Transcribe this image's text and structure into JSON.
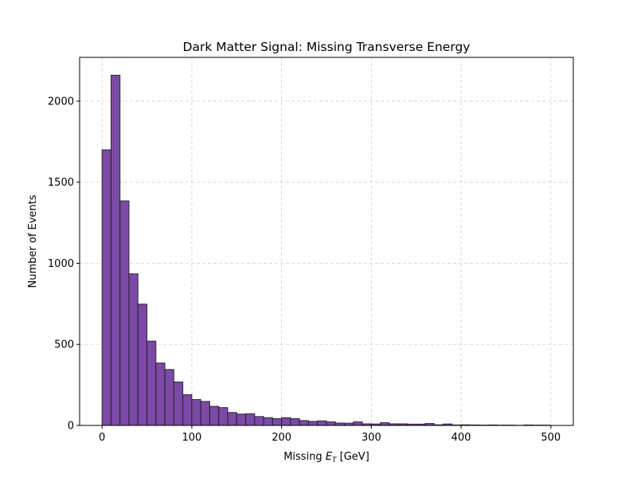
{
  "chart_data": {
    "type": "bar",
    "title": "Dark Matter Signal: Missing Transverse Energy",
    "xlabel_prefix": "Missing ",
    "xlabel_symbol": "E",
    "xlabel_subscript": "T",
    "xlabel_suffix": " [GeV]",
    "ylabel": "Number of Events",
    "xlim": [
      -25,
      525
    ],
    "ylim": [
      0,
      2270
    ],
    "grid": true,
    "bin_edges_start": 0,
    "bin_width": 10,
    "values": [
      1700,
      2160,
      1385,
      935,
      748,
      520,
      385,
      345,
      268,
      190,
      160,
      148,
      118,
      110,
      80,
      70,
      72,
      55,
      48,
      42,
      48,
      42,
      30,
      25,
      28,
      22,
      15,
      14,
      22,
      10,
      9,
      17,
      10,
      10,
      8,
      8,
      12,
      4,
      9,
      3,
      4,
      3,
      2,
      3,
      2,
      2,
      1,
      3,
      2,
      2
    ],
    "xticks": [
      "0",
      "100",
      "200",
      "300",
      "400",
      "500"
    ],
    "yticks": [
      "0",
      "500",
      "1000",
      "1500",
      "2000"
    ],
    "colors": {
      "bar_fill": "#7a4aa6",
      "bar_edge": "#1a1a1a",
      "grid": "#b0b0b0"
    }
  }
}
